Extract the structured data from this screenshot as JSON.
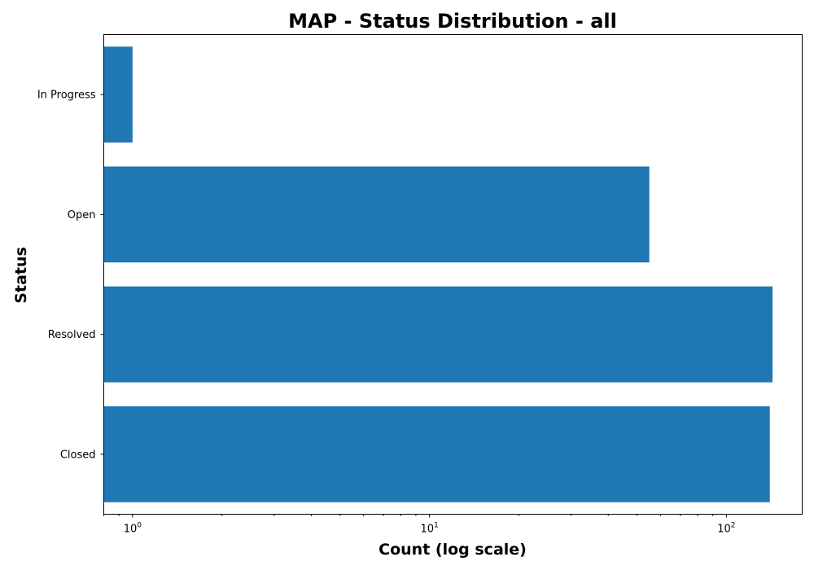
{
  "chart_data": {
    "type": "bar",
    "orientation": "horizontal",
    "title": "MAP - Status Distribution - all",
    "xlabel": "Count (log scale)",
    "ylabel": "Status",
    "x_scale": "log",
    "xlim": [
      0.8,
      180
    ],
    "x_ticks": [
      {
        "base": "10",
        "exp": "0",
        "value": 1
      },
      {
        "base": "10",
        "exp": "1",
        "value": 10
      },
      {
        "base": "10",
        "exp": "2",
        "value": 100
      }
    ],
    "categories": [
      "Closed",
      "Resolved",
      "Open",
      "In Progress"
    ],
    "values": [
      140,
      143,
      55,
      1
    ],
    "bar_color": "#1f77b4",
    "grid": false
  }
}
